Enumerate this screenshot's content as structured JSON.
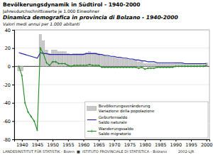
{
  "chart_data": {
    "type": "bar",
    "title": "Bevölkerungsdynamik in Südtirol - 1940-2000",
    "subtitle": "Jahresdurchschnittswerte je 1.000 Einwohner",
    "annotations": [
      "Dinamica demografica in provincia di Bolzano - 1940-2000",
      "Valori medi annui per 1.000 abitanti",
      "LANDESINSTITUT FÜR STATISTIK - Bozen  ■  ISTITUTO PROVINCIALE DI STATISTICA - Bolzano          2002-LJR"
    ],
    "x": [
      1939,
      1940,
      1941,
      1942,
      1943,
      1944,
      1945,
      1946,
      1947,
      1948,
      1949,
      1950,
      1951,
      1952,
      1953,
      1954,
      1955,
      1956,
      1957,
      1958,
      1959,
      1960,
      1961,
      1962,
      1963,
      1964,
      1965,
      1966,
      1967,
      1968,
      1969,
      1970,
      1971,
      1972,
      1973,
      1974,
      1975,
      1976,
      1977,
      1978,
      1979,
      1980,
      1981,
      1982,
      1983,
      1984,
      1985,
      1986,
      1987,
      1988,
      1989,
      1990,
      1991,
      1992,
      1993,
      1994,
      1995,
      1996,
      1997,
      1998,
      1999,
      2000
    ],
    "series": [
      {
        "name": "Bevölkerungsveränderung\nVariazione della popolazione",
        "type": "bar",
        "color": "#c8c8c8",
        "values": [
          -5,
          -5,
          0,
          0,
          0,
          0,
          0,
          35,
          28,
          18,
          14,
          18,
          18,
          16,
          16,
          16,
          14,
          13,
          14,
          14,
          14,
          14,
          15,
          16,
          15,
          15,
          14,
          12,
          12,
          11,
          10,
          10,
          9,
          9,
          8,
          8,
          7,
          7,
          6,
          5,
          5,
          3,
          3,
          3,
          3,
          3,
          3,
          3,
          3,
          3,
          3,
          4,
          4,
          4,
          3,
          3,
          3,
          3,
          3,
          3,
          3,
          4
        ]
      },
      {
        "name": "Geburtensaldo\nSaldo naturale",
        "type": "line",
        "color": "#2222aa",
        "values": [
          15,
          14,
          13,
          12,
          11,
          10,
          9,
          15,
          14,
          14,
          13,
          13,
          13,
          13,
          13,
          13,
          13,
          13,
          13,
          13,
          13,
          13,
          14,
          14,
          14,
          14,
          13,
          13,
          12,
          12,
          11,
          11,
          10,
          10,
          9,
          9,
          8,
          8,
          7,
          7,
          6,
          6,
          5,
          5,
          5,
          4,
          4,
          4,
          4,
          4,
          4,
          4,
          4,
          4,
          3,
          3,
          3,
          3,
          3,
          3,
          3,
          3
        ]
      },
      {
        "name": "Wanderungssaldo\nSaldo migratorio",
        "type": "line",
        "color": "#228822",
        "marker": "plus",
        "values": [
          0,
          -10,
          -40,
          -50,
          -55,
          -60,
          -70,
          20,
          14,
          4,
          1,
          5,
          5,
          3,
          3,
          3,
          1,
          0,
          1,
          1,
          1,
          1,
          1,
          2,
          1,
          1,
          1,
          -1,
          -1,
          -1,
          -1,
          -1,
          -1,
          -1,
          -1,
          -1,
          -1,
          -1,
          -1,
          -2,
          -1,
          -3,
          -2,
          -2,
          -2,
          -1,
          -1,
          -1,
          -1,
          -1,
          -1,
          0,
          0,
          0,
          0,
          0,
          0,
          0,
          0,
          0,
          0,
          1
        ]
      }
    ],
    "xlim": [
      1937.5,
      2001
    ],
    "xticks": [
      1940,
      1945,
      1950,
      1955,
      1960,
      1965,
      1970,
      1975,
      1980,
      1985,
      1990,
      1995,
      2000
    ],
    "ylim": [
      -80,
      40
    ],
    "yticks": [
      -80,
      -60,
      -40,
      -20,
      0,
      20,
      40
    ],
    "grid": true,
    "legend": "lower right"
  }
}
